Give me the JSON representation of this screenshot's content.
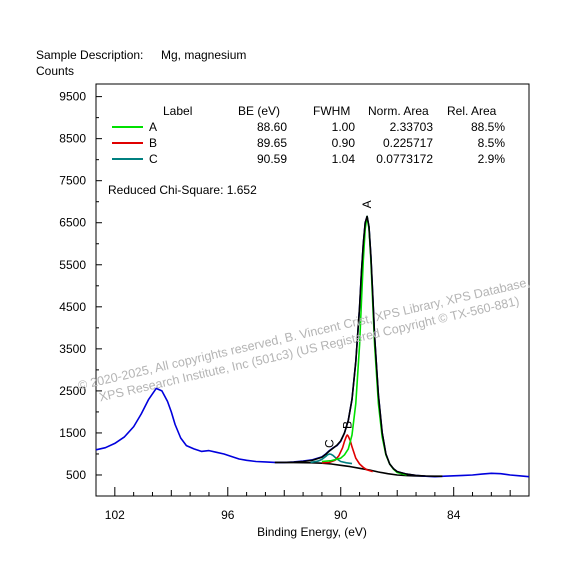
{
  "chart_data": {
    "type": "line",
    "header": {
      "description_label": "Sample Description:",
      "description_value": "Mg, magnesium"
    },
    "ylabel": "Counts",
    "xlabel": "Binding Energy, (eV)",
    "x_reversed": true,
    "xlim": [
      103.0,
      80.0
    ],
    "ylim": [
      0,
      9800
    ],
    "x_ticks": [
      102,
      96,
      90,
      84
    ],
    "x_tick_labels": [
      "102",
      "96",
      "90",
      "84"
    ],
    "y_ticks": [
      500,
      1500,
      2500,
      3500,
      4500,
      5500,
      6500,
      7500,
      8500,
      9500
    ],
    "y_tick_labels": [
      "500",
      "1500",
      "2500",
      "3500",
      "4500",
      "5500",
      "6500",
      "7500",
      "8500",
      "9500"
    ],
    "table": {
      "headers": [
        "Label",
        "BE (eV)",
        "FWHM",
        "Norm. Area",
        "Rel. Area"
      ],
      "rows": [
        {
          "label": "A",
          "be": "88.60",
          "fwhm": "1.00",
          "norm_area": "2.33703",
          "rel_area": "88.5%",
          "color": "#00e000"
        },
        {
          "label": "B",
          "be": "89.65",
          "fwhm": "0.90",
          "norm_area": "0.225717",
          "rel_area": "8.5%",
          "color": "#e00000"
        },
        {
          "label": "C",
          "be": "90.59",
          "fwhm": "1.04",
          "norm_area": "0.0773172",
          "rel_area": "2.9%",
          "color": "#008080"
        }
      ]
    },
    "chi_square": "Reduced Chi-Square: 1.652",
    "peak_labels": [
      {
        "label": "A",
        "x": 88.6,
        "y": 6700
      },
      {
        "label": "B",
        "x": 89.65,
        "y": 1450
      },
      {
        "label": "C",
        "x": 90.59,
        "y": 1000
      }
    ],
    "series": [
      {
        "name": "raw",
        "color": "#0000dd",
        "x": [
          103.0,
          102.5,
          102.0,
          101.5,
          101.0,
          100.6,
          100.2,
          99.8,
          99.5,
          99.2,
          99.0,
          98.8,
          98.5,
          98.2,
          97.8,
          97.4,
          97.0,
          96.6,
          96.2,
          95.8,
          95.4,
          95.0,
          94.5,
          94.0,
          93.5,
          93.0,
          92.5,
          92.0,
          91.5,
          91.0,
          90.8,
          90.6,
          90.4,
          90.2,
          90.0,
          89.8,
          89.6,
          89.4,
          89.2,
          89.0,
          88.9,
          88.8,
          88.7,
          88.6,
          88.5,
          88.4,
          88.3,
          88.2,
          88.0,
          87.8,
          87.6,
          87.4,
          87.2,
          87.0,
          86.5,
          86.0,
          85.5,
          85.0,
          84.5,
          84.0,
          83.5,
          83.0,
          82.5,
          82.0,
          81.5,
          81.0,
          80.5,
          80.0
        ],
        "y": [
          1100,
          1150,
          1250,
          1400,
          1650,
          1950,
          2300,
          2560,
          2500,
          2250,
          2000,
          1700,
          1380,
          1200,
          1120,
          1060,
          1080,
          1040,
          1000,
          940,
          880,
          850,
          820,
          810,
          800,
          800,
          810,
          830,
          860,
          930,
          1000,
          1080,
          1150,
          1200,
          1300,
          1500,
          1800,
          2300,
          3200,
          4500,
          5300,
          6000,
          6500,
          6650,
          6400,
          5700,
          4800,
          3800,
          2400,
          1500,
          1000,
          760,
          650,
          580,
          520,
          490,
          470,
          460,
          470,
          480,
          490,
          500,
          520,
          540,
          530,
          500,
          480,
          460
        ]
      },
      {
        "name": "A",
        "color": "#00e000",
        "x": [
          91.0,
          90.5,
          90.0,
          89.8,
          89.6,
          89.4,
          89.2,
          89.0,
          88.9,
          88.8,
          88.7,
          88.6,
          88.5,
          88.4,
          88.3,
          88.2,
          88.0,
          87.8,
          87.6,
          87.4,
          87.2,
          87.0,
          86.5
        ],
        "y": [
          820,
          840,
          900,
          980,
          1120,
          1450,
          2200,
          3600,
          4600,
          5600,
          6350,
          6650,
          6350,
          5600,
          4600,
          3600,
          2200,
          1400,
          980,
          760,
          640,
          560,
          500
        ]
      },
      {
        "name": "B",
        "color": "#e00000",
        "x": [
          91.0,
          90.6,
          90.3,
          90.1,
          89.9,
          89.8,
          89.7,
          89.65,
          89.6,
          89.5,
          89.4,
          89.2,
          89.0,
          88.8,
          88.6,
          88.3
        ],
        "y": [
          790,
          800,
          850,
          960,
          1150,
          1300,
          1420,
          1450,
          1420,
          1320,
          1170,
          900,
          760,
          680,
          620,
          580
        ]
      },
      {
        "name": "C",
        "color": "#008080",
        "x": [
          91.6,
          91.2,
          91.0,
          90.8,
          90.7,
          90.59,
          90.5,
          90.4,
          90.2,
          90.0,
          89.7,
          89.4
        ],
        "y": [
          800,
          830,
          870,
          940,
          980,
          1000,
          990,
          960,
          880,
          820,
          790,
          770
        ]
      },
      {
        "name": "envelope",
        "color": "#000000",
        "x": [
          93.5,
          93.0,
          92.5,
          92.0,
          91.5,
          91.0,
          90.8,
          90.6,
          90.4,
          90.2,
          90.0,
          89.8,
          89.6,
          89.4,
          89.2,
          89.0,
          88.9,
          88.8,
          88.7,
          88.6,
          88.5,
          88.4,
          88.3,
          88.2,
          88.0,
          87.8,
          87.6,
          87.4,
          87.2,
          87.0,
          86.5,
          86.0,
          85.5,
          85.0,
          84.6
        ],
        "y": [
          800,
          800,
          805,
          820,
          850,
          920,
          990,
          1070,
          1140,
          1210,
          1310,
          1500,
          1800,
          2300,
          3200,
          4500,
          5300,
          6000,
          6500,
          6650,
          6400,
          5700,
          4800,
          3800,
          2400,
          1500,
          1000,
          760,
          650,
          580,
          520,
          490,
          475,
          470,
          470
        ]
      },
      {
        "name": "background",
        "color": "#000000",
        "x": [
          93.5,
          92.5,
          91.5,
          91.0,
          90.5,
          90.0,
          89.5,
          89.0,
          88.5,
          88.0,
          87.5,
          87.0,
          86.5,
          86.0,
          85.5,
          85.0,
          84.6
        ],
        "y": [
          800,
          795,
          790,
          780,
          760,
          730,
          700,
          660,
          620,
          570,
          530,
          500,
          485,
          475,
          470,
          468,
          468
        ]
      }
    ]
  },
  "watermark": {
    "line1": "© 2020-2025,  All copyrights reserved,   B. Vincent Crist, XPS Library, XPS Database,",
    "line2": "XPS Research Institute, Inc (501c3)   (US Registered Copyright © TX-560-881)"
  }
}
